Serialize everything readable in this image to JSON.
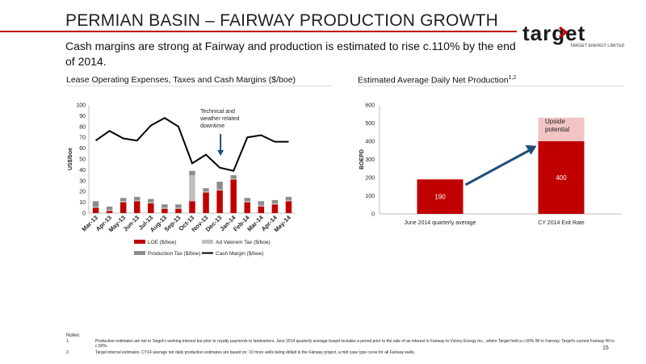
{
  "slide": {
    "title": "PERMIAN BASIN – FAIRWAY PRODUCTION GROWTH",
    "subtitle": "Cash margins are strong at Fairway and production is estimated to rise c.110% by the end of 2014.",
    "page_number": "15"
  },
  "logo": {
    "text": "target",
    "tagline": "TARGET ENERGY LIMITED"
  },
  "colors": {
    "accent": "#c00000",
    "ad_valorem": "#bfbfbf",
    "production_tax": "#8c8c8c",
    "cash_margin": "#000000",
    "arrow": "#1f4e79",
    "upside": "#f2c4c4"
  },
  "left_section_title": "Lease Operating Expenses, Taxes and Cash Margins ($/boe)",
  "right_section_title": "Estimated Average Daily Net Production",
  "right_section_sup": "1,2",
  "notes": {
    "label": "Notes:",
    "items": [
      {
        "num": "1.",
        "text": "Production estimates are net to Target's working interest but prior to royalty payments to landowners. June 2014 quarterly average boepd includes a period prior to the sale of an interest in Fairway to Victory Energy Inc., where Target held a c.60% WI in Fairway. Target's current Fairway WI is c.50%."
      },
      {
        "num": "2.",
        "text": "Target internal estimates. CY14 average net daily production estimates are based on: 10 more wells being drilled in the Fairway project, a mid case type curve for all Fairway wells."
      }
    ]
  },
  "chart_data": [
    {
      "type": "bar",
      "title": "",
      "xlabel": "",
      "ylabel": "US$/boe",
      "ylim": [
        0,
        100
      ],
      "yticks": [
        0,
        10,
        20,
        30,
        40,
        50,
        60,
        70,
        80,
        90,
        100
      ],
      "categories": [
        "Mar-13",
        "Apr-13",
        "May-13",
        "Jun-13",
        "Jul-13",
        "Aug-13",
        "Sep-13",
        "Oct-13",
        "Nov-13",
        "Dec-13",
        "Jan-14",
        "Feb-14",
        "Mar-14",
        "Apr-14",
        "May-14"
      ],
      "series": [
        {
          "name": "LOE ($/boe)",
          "kind": "stacked-bar",
          "color": "#c00000",
          "values": [
            5,
            2,
            10,
            11,
            9,
            4,
            4,
            11,
            19,
            21,
            31,
            10,
            6,
            8,
            11
          ]
        },
        {
          "name": "Ad Valorem Tax ($/boe)",
          "kind": "stacked-bar",
          "color": "#bfbfbf",
          "values": [
            1,
            1,
            1,
            1,
            1,
            1,
            1,
            24,
            1,
            1,
            1,
            1,
            1,
            1,
            1
          ]
        },
        {
          "name": "Production Tax ($/boe)",
          "kind": "stacked-bar",
          "color": "#8c8c8c",
          "values": [
            5,
            3,
            3,
            3,
            3,
            3,
            3,
            4,
            3,
            7,
            3,
            3,
            4,
            3,
            3
          ]
        },
        {
          "name": "Cash Margin ($/boe)",
          "kind": "line",
          "color": "#000000",
          "values": [
            67,
            76,
            69,
            67,
            81,
            88,
            80,
            46,
            54,
            42,
            39,
            70,
            72,
            66,
            66
          ]
        }
      ],
      "annotation": {
        "text": [
          "Technical and",
          "weather related",
          "downtime"
        ],
        "category": "Dec-13"
      },
      "legend": "bottom"
    },
    {
      "type": "bar",
      "title": "",
      "xlabel": "",
      "ylabel": "BOEPD",
      "ylim": [
        0,
        600
      ],
      "yticks": [
        0,
        100,
        200,
        300,
        400,
        500,
        600
      ],
      "categories": [
        "June 2014 quarterly average",
        "CY 2014 Exit Rate"
      ],
      "values": [
        190,
        400
      ],
      "value_labels": [
        "190",
        "400"
      ],
      "upside": {
        "category": "CY 2014 Exit Rate",
        "from": 400,
        "to": 530,
        "label": [
          "Upside",
          "potential"
        ]
      }
    }
  ]
}
